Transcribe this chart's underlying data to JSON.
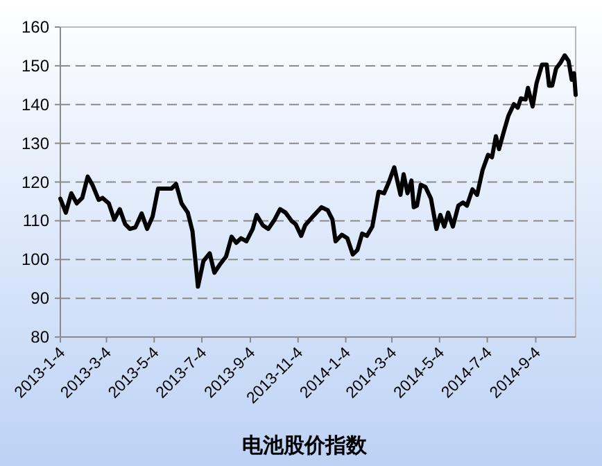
{
  "chart_data": {
    "type": "line",
    "xlabel": "电池股价指数",
    "x": [
      "2013-01-04",
      "2013-01-11",
      "2013-01-18",
      "2013-01-25",
      "2013-02-01",
      "2013-02-08",
      "2013-02-14",
      "2013-02-22",
      "2013-02-27",
      "2013-03-07",
      "2013-03-14",
      "2013-03-21",
      "2013-03-28",
      "2013-04-03",
      "2013-04-10",
      "2013-04-18",
      "2013-04-25",
      "2013-05-02",
      "2013-05-09",
      "2013-05-17",
      "2013-05-26",
      "2013-06-01",
      "2013-06-08",
      "2013-06-16",
      "2013-06-22",
      "2013-06-29",
      "2013-07-06",
      "2013-07-14",
      "2013-07-20",
      "2013-07-27",
      "2013-08-04",
      "2013-08-11",
      "2013-08-17",
      "2013-08-23",
      "2013-08-30",
      "2013-09-07",
      "2013-09-12",
      "2013-09-20",
      "2013-09-27",
      "2013-10-05",
      "2013-10-12",
      "2013-10-19",
      "2013-10-27",
      "2013-11-01",
      "2013-11-08",
      "2013-11-13",
      "2013-11-22",
      "2013-12-04",
      "2013-12-12",
      "2013-12-18",
      "2013-12-22",
      "2013-12-30",
      "2014-01-06",
      "2014-01-13",
      "2014-01-19",
      "2014-01-25",
      "2014-01-31",
      "2014-02-07",
      "2014-02-15",
      "2014-02-22",
      "2014-02-28",
      "2014-03-07",
      "2014-03-15",
      "2014-03-19",
      "2014-03-24",
      "2014-03-29",
      "2014-04-01",
      "2014-04-05",
      "2014-04-10",
      "2014-04-16",
      "2014-04-23",
      "2014-04-30",
      "2014-05-05",
      "2014-05-10",
      "2014-05-15",
      "2014-05-21",
      "2014-05-28",
      "2014-06-03",
      "2014-06-08",
      "2014-06-15",
      "2014-06-21",
      "2014-06-28",
      "2014-07-05",
      "2014-07-10",
      "2014-07-15",
      "2014-07-19",
      "2014-07-25",
      "2014-07-31",
      "2014-08-07",
      "2014-08-12",
      "2014-08-16",
      "2014-08-22",
      "2014-08-25",
      "2014-08-31",
      "2014-09-05",
      "2014-09-12",
      "2014-09-18",
      "2014-09-21",
      "2014-09-25",
      "2014-09-30",
      "2014-10-06",
      "2014-10-11",
      "2014-10-16",
      "2014-10-20",
      "2014-10-23",
      "2014-10-25"
    ],
    "series": [
      {
        "color": "#000000",
        "values": [
          115.7,
          112.1,
          117.1,
          114.5,
          115.9,
          121.4,
          119.3,
          115.4,
          115.9,
          114.5,
          110.3,
          113.0,
          109.1,
          107.9,
          108.3,
          111.9,
          107.9,
          111.1,
          118.3,
          118.3,
          118.3,
          119.5,
          114.5,
          112.1,
          107.3,
          93.0,
          99.6,
          101.6,
          96.6,
          98.7,
          100.8,
          105.9,
          104.3,
          105.5,
          104.7,
          107.9,
          111.5,
          108.8,
          107.9,
          110.3,
          113.0,
          112.1,
          109.9,
          109.1,
          106.1,
          108.8,
          110.9,
          113.5,
          112.7,
          110.3,
          104.7,
          106.4,
          105.5,
          101.3,
          102.5,
          106.7,
          106.1,
          108.5,
          117.5,
          117.1,
          119.9,
          123.8,
          116.7,
          122.0,
          117.1,
          120.4,
          113.5,
          113.9,
          119.3,
          118.7,
          115.7,
          107.9,
          111.5,
          108.5,
          112.1,
          108.5,
          113.9,
          114.7,
          113.9,
          118.1,
          116.7,
          123.1,
          127.0,
          126.4,
          131.8,
          128.5,
          132.9,
          137.1,
          140.1,
          139.2,
          141.6,
          141.3,
          144.3,
          139.5,
          145.5,
          150.3,
          150.3,
          144.9,
          144.9,
          149.3,
          150.9,
          152.7,
          151.2,
          146.4,
          148.1,
          142.5
        ]
      }
    ],
    "xlim": [
      "2013-01-04",
      "2014-10-25"
    ],
    "xticks": [
      {
        "value": "2013-01-04",
        "label": "2013-1-4"
      },
      {
        "value": "2013-03-04",
        "label": "2013-3-4"
      },
      {
        "value": "2013-05-04",
        "label": "2013-5-4"
      },
      {
        "value": "2013-07-04",
        "label": "2013-7-4"
      },
      {
        "value": "2013-09-04",
        "label": "2013-9-4"
      },
      {
        "value": "2013-11-04",
        "label": "2013-11-4"
      },
      {
        "value": "2014-01-04",
        "label": "2014-1-4"
      },
      {
        "value": "2014-03-04",
        "label": "2014-3-4"
      },
      {
        "value": "2014-05-04",
        "label": "2014-5-4"
      },
      {
        "value": "2014-07-04",
        "label": "2014-7-4"
      },
      {
        "value": "2014-09-04",
        "label": "2014-9-4"
      }
    ],
    "ylim": [
      80,
      160
    ],
    "yticks": [
      80,
      90,
      100,
      110,
      120,
      130,
      140,
      150,
      160
    ],
    "grid": "y"
  }
}
